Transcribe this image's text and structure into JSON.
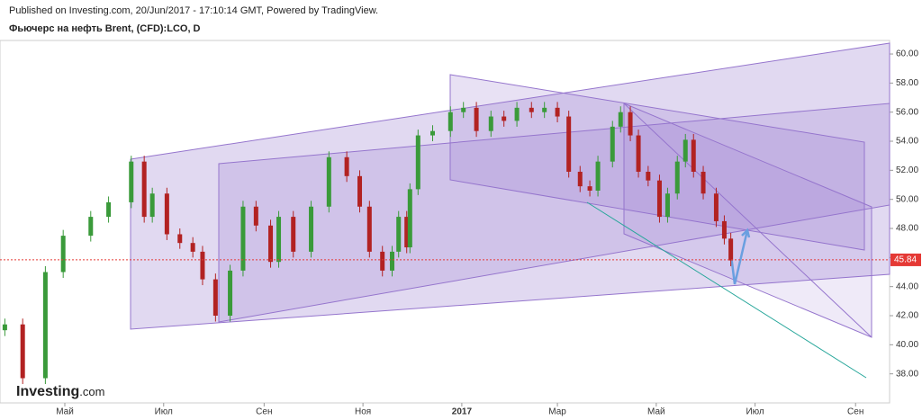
{
  "header": {
    "published": "Published on Investing.com, 20/Jun/2017 - 17:10:14 GMT, Powered by TradingView.",
    "instrument": "Фьючерс на нефть Brent, (CFD):LCO, D"
  },
  "logo": {
    "name": "Investing",
    "suffix": ".com"
  },
  "chart_data": {
    "type": "candlestick",
    "x": [
      -37,
      -26,
      -12,
      -1,
      16,
      27,
      41,
      49,
      54,
      63,
      71,
      79,
      85,
      93,
      102,
      110,
      118,
      127,
      132,
      141,
      152,
      163,
      174,
      182,
      188,
      196,
      202,
      206,
      211,
      213,
      218,
      227,
      238,
      246,
      254,
      263,
      271,
      279,
      288,
      296,
      304,
      311,
      318,
      324,
      329,
      338,
      343,
      349,
      354,
      360,
      367,
      372,
      378,
      383,
      388,
      394,
      402,
      407,
      411
    ],
    "open": [
      41.0,
      41.4,
      37.7,
      45.0,
      47.5,
      48.8,
      49.8,
      52.6,
      48.8,
      50.4,
      47.6,
      47.0,
      46.4,
      44.5,
      42.0,
      45.1,
      49.5,
      48.2,
      45.7,
      48.8,
      46.4,
      49.5,
      52.9,
      51.6,
      49.5,
      46.4,
      45.1,
      46.4,
      48.8,
      46.7,
      50.7,
      54.4,
      54.7,
      56.0,
      56.3,
      54.7,
      55.7,
      55.4,
      56.3,
      56.0,
      56.3,
      55.7,
      51.9,
      50.9,
      50.6,
      52.6,
      55.0,
      56.0,
      54.4,
      51.9,
      51.3,
      48.8,
      50.4,
      52.6,
      54.1,
      51.9,
      50.4,
      48.5,
      47.3
    ],
    "high": [
      41.8,
      41.8,
      45.4,
      47.9,
      49.2,
      50.2,
      53.0,
      53.0,
      50.8,
      50.8,
      48.0,
      47.4,
      46.8,
      44.9,
      45.5,
      49.9,
      49.9,
      48.6,
      49.2,
      49.2,
      49.9,
      53.3,
      53.3,
      52.0,
      49.9,
      46.8,
      46.8,
      49.2,
      49.2,
      51.1,
      54.8,
      55.1,
      56.4,
      56.7,
      56.7,
      56.1,
      56.1,
      56.7,
      56.7,
      56.7,
      56.7,
      56.1,
      52.3,
      51.3,
      53.0,
      55.4,
      56.4,
      56.4,
      54.8,
      52.3,
      51.7,
      50.8,
      53.0,
      54.5,
      54.5,
      52.3,
      50.8,
      48.9,
      47.7
    ],
    "low": [
      40.6,
      37.3,
      37.3,
      44.6,
      47.1,
      48.4,
      49.4,
      48.4,
      48.4,
      47.2,
      46.6,
      46.0,
      44.1,
      41.6,
      41.6,
      44.7,
      47.8,
      45.3,
      45.3,
      46.0,
      46.0,
      49.1,
      51.2,
      49.1,
      46.0,
      44.7,
      44.7,
      46.0,
      46.3,
      46.3,
      50.3,
      54.0,
      54.3,
      55.6,
      54.3,
      54.3,
      55.0,
      55.0,
      55.6,
      55.6,
      55.3,
      51.5,
      50.5,
      50.2,
      50.2,
      52.2,
      54.6,
      54.0,
      51.5,
      50.9,
      48.4,
      48.4,
      50.0,
      52.2,
      51.5,
      50.0,
      48.1,
      46.9,
      45.4
    ],
    "close": [
      41.4,
      37.7,
      45.0,
      47.5,
      48.8,
      49.8,
      52.6,
      48.8,
      50.4,
      47.6,
      47.0,
      46.4,
      44.5,
      42.0,
      45.1,
      49.5,
      48.2,
      45.7,
      48.8,
      46.4,
      49.5,
      52.9,
      51.6,
      49.5,
      46.4,
      45.1,
      46.4,
      48.8,
      46.7,
      50.7,
      54.4,
      54.7,
      56.0,
      56.3,
      54.7,
      55.7,
      55.4,
      56.3,
      56.0,
      56.3,
      55.7,
      51.9,
      50.9,
      50.6,
      52.6,
      55.0,
      56.0,
      54.4,
      51.9,
      51.3,
      48.8,
      50.4,
      52.6,
      54.1,
      51.9,
      50.4,
      48.5,
      47.3,
      45.8
    ],
    "up_color": "#3a9a3a",
    "down_color": "#b22222",
    "last_price": 45.84,
    "last_price_color": "#e53935",
    "xlim": [
      -40,
      509
    ],
    "xticks": [
      {
        "value": 0,
        "label": "Май"
      },
      {
        "value": 61,
        "label": "Июл"
      },
      {
        "value": 123,
        "label": "Сен"
      },
      {
        "value": 184,
        "label": "Ноя"
      },
      {
        "value": 245,
        "label": "2017"
      },
      {
        "value": 304,
        "label": "Мар"
      },
      {
        "value": 365,
        "label": "Май"
      },
      {
        "value": 426,
        "label": "Июл"
      },
      {
        "value": 488,
        "label": "Сен"
      }
    ],
    "ylim": [
      36,
      60.93
    ],
    "yticks": [
      {
        "value": 38,
        "label": "38.00"
      },
      {
        "value": 40,
        "label": "40.00"
      },
      {
        "value": 42,
        "label": "42.00"
      },
      {
        "value": 44,
        "label": "44.00"
      },
      {
        "value": 46,
        "label": "46.00"
      },
      {
        "value": 48,
        "label": "48.00"
      },
      {
        "value": 50,
        "label": "50.00"
      },
      {
        "value": 52,
        "label": "52.00"
      },
      {
        "value": 54,
        "label": "54.00"
      },
      {
        "value": 56,
        "label": "56.00"
      },
      {
        "value": 58,
        "label": "58.00"
      },
      {
        "value": 60,
        "label": "60.00"
      }
    ]
  }
}
